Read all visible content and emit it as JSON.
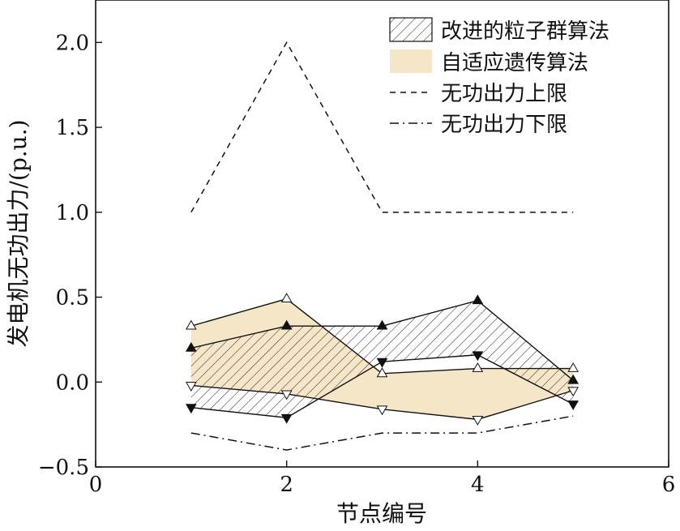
{
  "chart_data": {
    "type": "area",
    "xlabel": "节点编号",
    "ylabel": "发电机无功出力/(p.u.)",
    "xlim": [
      0,
      6
    ],
    "ylim": [
      -0.5,
      2.25
    ],
    "xticks": [
      0,
      2,
      4,
      6
    ],
    "yticks": [
      -0.5,
      0.0,
      0.5,
      1.0,
      1.5,
      2.0
    ],
    "xtick_labels": [
      "0",
      "2",
      "4",
      "6"
    ],
    "ytick_labels": [
      "−0.5",
      "0.0",
      "0.5",
      "1.0",
      "1.5",
      "2.0"
    ],
    "grid": false,
    "legend_position": "top-right",
    "x": [
      1,
      2,
      3,
      4,
      5
    ],
    "series": [
      {
        "name": "改进的粒子群算法",
        "kind": "band",
        "fill": "hatch",
        "upper": [
          0.2,
          0.33,
          0.33,
          0.48,
          0.01
        ],
        "lower": [
          -0.15,
          -0.21,
          0.12,
          0.16,
          -0.13
        ],
        "upper_marker": "triangle-up",
        "lower_marker": "triangle-down",
        "color": "#000000"
      },
      {
        "name": "自适应遗传算法",
        "kind": "band",
        "fill": "#f5e6c8",
        "upper": [
          0.33,
          0.49,
          0.05,
          0.08,
          0.08
        ],
        "lower": [
          -0.02,
          -0.07,
          -0.16,
          -0.22,
          -0.05
        ],
        "upper_marker": "triangle-up-open",
        "lower_marker": "triangle-down-open",
        "color": "#000000"
      },
      {
        "name": "无功出力上限",
        "kind": "line",
        "dash": "dashed",
        "values": [
          1.0,
          2.0,
          1.0,
          1.0,
          1.0
        ],
        "color": "#000000"
      },
      {
        "name": "无功出力下限",
        "kind": "line",
        "dash": "dashdot",
        "values": [
          -0.3,
          -0.4,
          -0.3,
          -0.3,
          -0.2
        ],
        "color": "#000000"
      }
    ]
  }
}
